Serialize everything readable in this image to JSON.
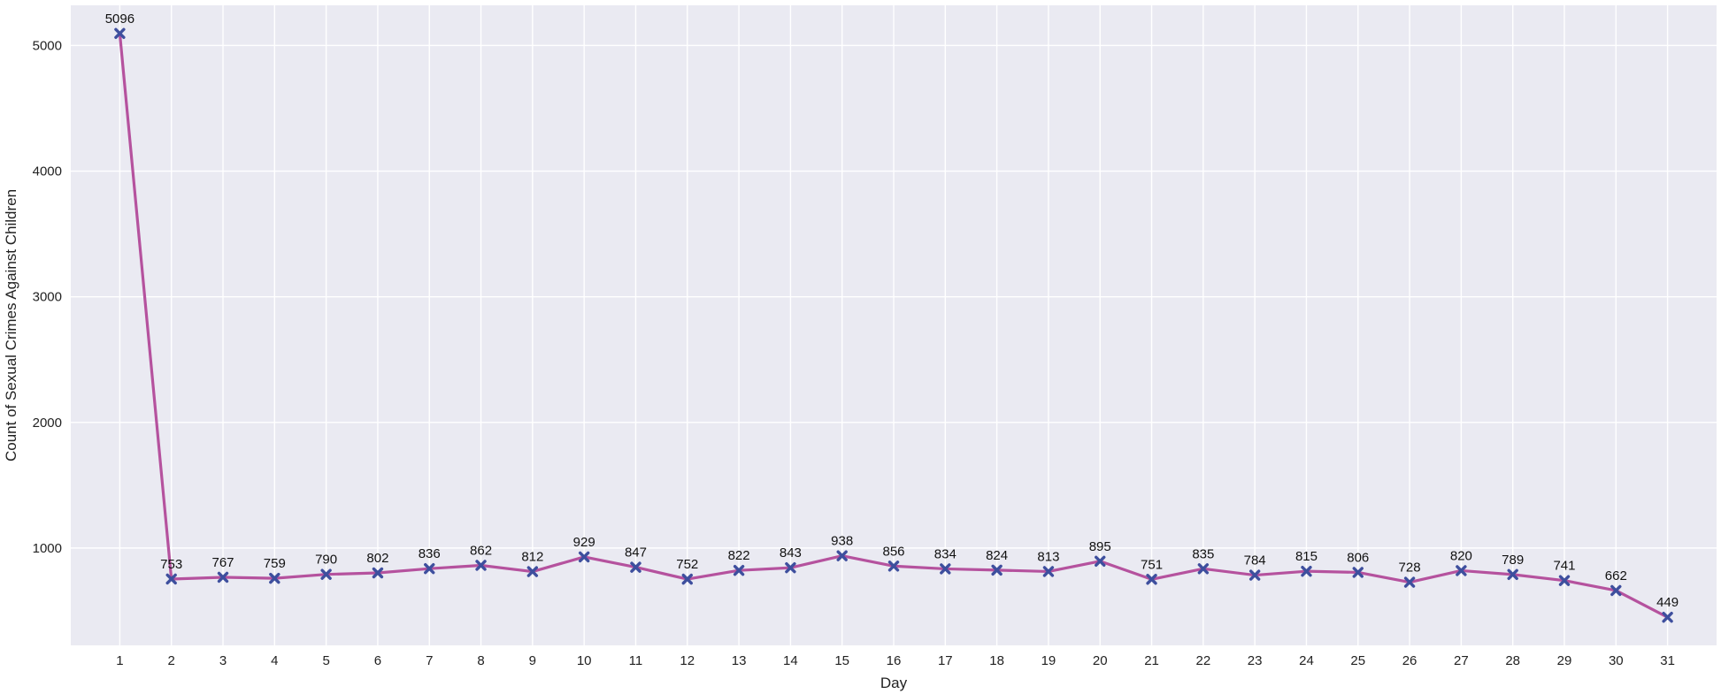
{
  "chart_data": {
    "type": "line",
    "title": "",
    "xlabel": "Day",
    "ylabel": "Count of Sexual Crimes Against Children",
    "x": [
      1,
      2,
      3,
      4,
      5,
      6,
      7,
      8,
      9,
      10,
      11,
      12,
      13,
      14,
      15,
      16,
      17,
      18,
      19,
      20,
      21,
      22,
      23,
      24,
      25,
      26,
      27,
      28,
      29,
      30,
      31
    ],
    "series": [
      {
        "values": [
          5096,
          753,
          767,
          759,
          790,
          802,
          836,
          862,
          812,
          929,
          847,
          752,
          822,
          843,
          938,
          856,
          834,
          824,
          813,
          895,
          751,
          835,
          784,
          815,
          806,
          728,
          820,
          789,
          741,
          662,
          449
        ]
      }
    ],
    "yticks": [
      1000,
      2000,
      3000,
      4000,
      5000
    ],
    "ylim": [
      225,
      5320
    ],
    "xlim": [
      0.05,
      31.95
    ],
    "grid": true,
    "data_labels": true,
    "colors": {
      "background": "#eaeaf2",
      "grid": "#ffffff",
      "line": "#b5529e",
      "marker": "#3e4f9e"
    },
    "marker": "x-cross"
  }
}
